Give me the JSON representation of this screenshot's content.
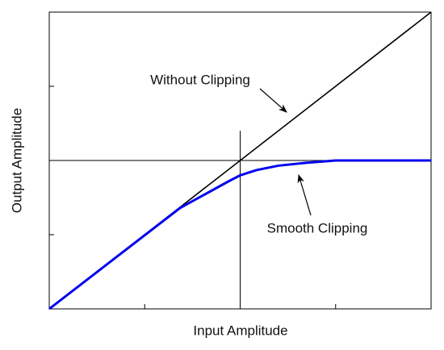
{
  "chart_data": {
    "type": "line",
    "xlabel": "Input Amplitude",
    "ylabel": "Output Amplitude",
    "xlim": [
      0,
      4
    ],
    "ylim": [
      0,
      4
    ],
    "xticks": [
      1,
      2,
      3
    ],
    "yticks": [
      1,
      2,
      3
    ],
    "series": [
      {
        "name": "Without Clipping",
        "color": "#000000",
        "x": [
          0,
          4
        ],
        "values": [
          0,
          4
        ]
      },
      {
        "name": "Smooth Clipping",
        "color": "#0000ee",
        "x": [
          0,
          1.37,
          1.88,
          2.0,
          2.17,
          2.4,
          2.7,
          3.0,
          4.0
        ],
        "values": [
          0,
          1.36,
          1.72,
          1.8,
          1.87,
          1.93,
          1.97,
          2.0,
          2.0
        ]
      }
    ],
    "hline": 2,
    "vline": {
      "x": 2,
      "top": 2.4
    }
  }
}
